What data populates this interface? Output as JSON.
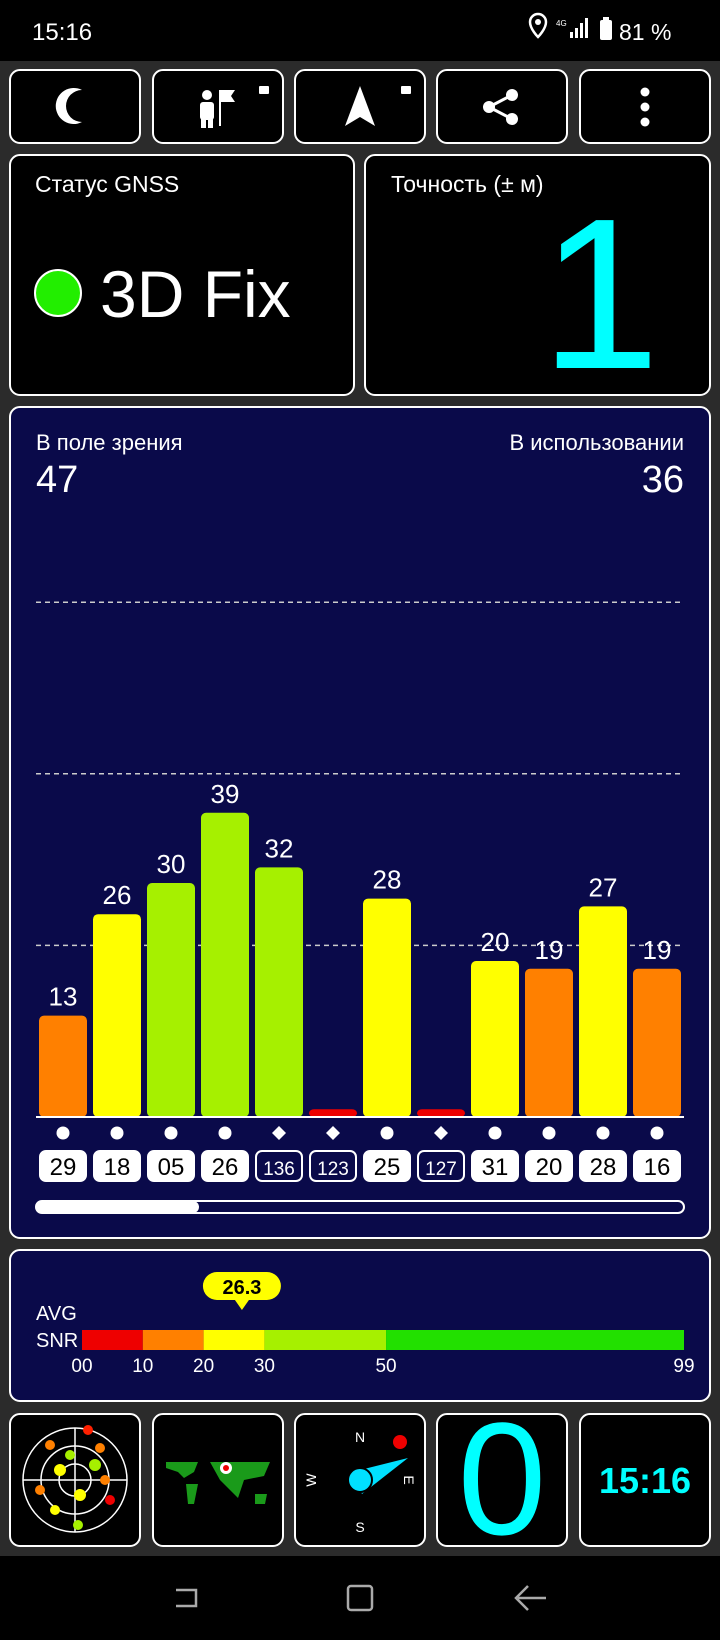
{
  "status_bar": {
    "time": "15:16",
    "network": "4G",
    "battery": "81 %"
  },
  "gnss": {
    "title": "Статус GNSS",
    "status": "3D Fix"
  },
  "accuracy": {
    "title": "Точность (± м)",
    "value": 1
  },
  "satellites": {
    "in_view_label": "В поле зрения",
    "in_view": 47,
    "in_use_label": "В использовании",
    "in_use": 36
  },
  "chart_data": {
    "type": "bar",
    "categories": [
      "29",
      "18",
      "05",
      "26",
      "136",
      "123",
      "25",
      "127",
      "31",
      "20",
      "28",
      "16"
    ],
    "values": [
      13,
      26,
      30,
      39,
      32,
      1,
      28,
      1,
      20,
      19,
      27,
      19
    ],
    "value_labels": [
      "13",
      "26",
      "30",
      "39",
      "32",
      null,
      "28",
      null,
      "20",
      "19",
      "27",
      "19"
    ],
    "colors": [
      "#ff8000",
      "#ffff00",
      "#a6f000",
      "#a6f000",
      "#a6f000",
      "#ee0000",
      "#ffff00",
      "#ee0000",
      "#ffff00",
      "#ff8000",
      "#ffff00",
      "#ff8000"
    ],
    "markers": [
      "circle",
      "circle",
      "circle",
      "circle",
      "diamond",
      "diamond",
      "circle",
      "diamond",
      "circle",
      "circle",
      "circle",
      "circle"
    ],
    "used": [
      true,
      true,
      true,
      true,
      false,
      false,
      true,
      false,
      true,
      true,
      true,
      true
    ],
    "ylim": [
      0,
      75
    ],
    "yticks": [
      22,
      44,
      66
    ],
    "grid": true
  },
  "snr": {
    "avg_label": "AVG",
    "snr_label": "SNR",
    "value": 26.3,
    "xlim": [
      0,
      99
    ],
    "xticks": [
      {
        "value": 0,
        "label": "00"
      },
      10,
      20,
      30,
      50,
      99
    ],
    "bands": [
      {
        "from": 0,
        "to": 10,
        "color": "#ee0000"
      },
      {
        "from": 10,
        "to": 20,
        "color": "#ff8000"
      },
      {
        "from": 20,
        "to": 30,
        "color": "#ffff00"
      },
      {
        "from": 30,
        "to": 50,
        "color": "#a6f000"
      },
      {
        "from": 50,
        "to": 99,
        "color": "#22e000"
      }
    ]
  },
  "tiles": {
    "compass": [
      "N",
      "E",
      "S",
      "W"
    ],
    "counter": 0,
    "clock": "15:16"
  }
}
